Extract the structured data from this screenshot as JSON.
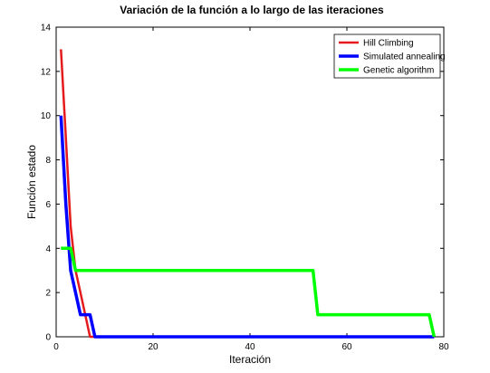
{
  "chart_data": {
    "type": "line",
    "title": "Variación de la función a lo largo de las iteraciones",
    "xlabel": "Iteración",
    "ylabel": "Función estado",
    "xlim": [
      0,
      80
    ],
    "ylim": [
      0,
      14
    ],
    "xticks": [
      "0",
      "20",
      "40",
      "60",
      "80"
    ],
    "yticks": [
      "0",
      "2",
      "4",
      "6",
      "8",
      "10",
      "12",
      "14"
    ],
    "grid": false,
    "legend_position": "top-right",
    "series": [
      {
        "name": "Hill Climbing",
        "color": "#e41a1c",
        "x": [
          1,
          2,
          3,
          4,
          5,
          6,
          7,
          8,
          78
        ],
        "y": [
          13,
          9,
          5,
          3,
          2,
          1,
          0,
          0,
          0
        ]
      },
      {
        "name": "Simulated annealing",
        "color": "#0000ff",
        "x": [
          1,
          2,
          3,
          4,
          5,
          6,
          7,
          8,
          78
        ],
        "y": [
          10,
          6,
          3,
          2,
          1,
          1,
          1,
          0,
          0
        ]
      },
      {
        "name": "Genetic algorithm",
        "color": "#00ff00",
        "x": [
          1,
          2,
          3,
          4,
          53,
          54,
          77,
          78
        ],
        "y": [
          4,
          4,
          4,
          3,
          3,
          1,
          1,
          0
        ]
      }
    ]
  }
}
